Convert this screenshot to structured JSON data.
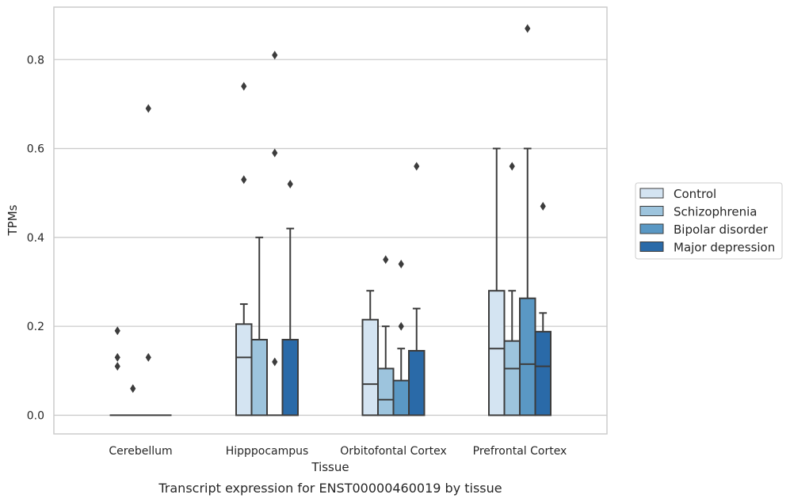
{
  "chart_data": {
    "type": "box",
    "xlabel": "Tissue",
    "ylabel": "TPMs",
    "caption": "Transcript expression for ENST00000460019 by tissue",
    "ylim": [
      -0.042,
      0.918
    ],
    "yticks": [
      0.0,
      0.2,
      0.4,
      0.6,
      0.8
    ],
    "ytick_labels": [
      "0.0",
      "0.2",
      "0.4",
      "0.6",
      "0.8"
    ],
    "grid": true,
    "legend_position": "right",
    "categories": [
      "Cerebellum",
      "Hipppocampus",
      "Orbitofontal Cortex",
      "Prefrontal Cortex"
    ],
    "series": [
      {
        "name": "Control",
        "color": "#d4e4f2",
        "boxes": [
          {
            "q1": 0.0,
            "median": 0.0,
            "q3": 0.0,
            "whisker_low": 0.0,
            "whisker_high": 0.0,
            "outliers": [
              0.19,
              0.13,
              0.11
            ]
          },
          {
            "q1": 0.0,
            "median": 0.13,
            "q3": 0.205,
            "whisker_low": 0.0,
            "whisker_high": 0.25,
            "outliers": [
              0.74,
              0.53
            ]
          },
          {
            "q1": 0.0,
            "median": 0.07,
            "q3": 0.215,
            "whisker_low": 0.0,
            "whisker_high": 0.28,
            "outliers": []
          },
          {
            "q1": 0.0,
            "median": 0.15,
            "q3": 0.28,
            "whisker_low": 0.0,
            "whisker_high": 0.6,
            "outliers": []
          }
        ]
      },
      {
        "name": "Schizophrenia",
        "color": "#9dc4dd",
        "boxes": [
          {
            "q1": 0.0,
            "median": 0.0,
            "q3": 0.0,
            "whisker_low": 0.0,
            "whisker_high": 0.0,
            "outliers": [
              0.06
            ]
          },
          {
            "q1": 0.0,
            "median": 0.17,
            "q3": 0.17,
            "whisker_low": 0.0,
            "whisker_high": 0.4,
            "outliers": []
          },
          {
            "q1": 0.0,
            "median": 0.035,
            "q3": 0.105,
            "whisker_low": 0.0,
            "whisker_high": 0.2,
            "outliers": [
              0.35
            ]
          },
          {
            "q1": 0.0,
            "median": 0.105,
            "q3": 0.167,
            "whisker_low": 0.0,
            "whisker_high": 0.28,
            "outliers": [
              0.56
            ]
          }
        ]
      },
      {
        "name": "Bipolar disorder",
        "color": "#5a98c4",
        "boxes": [
          {
            "q1": 0.0,
            "median": 0.0,
            "q3": 0.0,
            "whisker_low": 0.0,
            "whisker_high": 0.0,
            "outliers": [
              0.69,
              0.13
            ]
          },
          {
            "q1": 0.0,
            "median": 0.0,
            "q3": 0.0,
            "whisker_low": 0.0,
            "whisker_high": 0.0,
            "outliers": [
              0.81,
              0.59,
              0.12
            ]
          },
          {
            "q1": 0.0,
            "median": 0.0,
            "q3": 0.078,
            "whisker_low": 0.0,
            "whisker_high": 0.15,
            "outliers": [
              0.34,
              0.2
            ]
          },
          {
            "q1": 0.0,
            "median": 0.115,
            "q3": 0.263,
            "whisker_low": 0.0,
            "whisker_high": 0.6,
            "outliers": [
              0.87
            ]
          }
        ]
      },
      {
        "name": "Major depression",
        "color": "#2a6aa8",
        "boxes": [
          {
            "q1": 0.0,
            "median": 0.0,
            "q3": 0.0,
            "whisker_low": 0.0,
            "whisker_high": 0.0,
            "outliers": []
          },
          {
            "q1": 0.0,
            "median": 0.17,
            "q3": 0.17,
            "whisker_low": 0.0,
            "whisker_high": 0.42,
            "outliers": [
              0.52
            ]
          },
          {
            "q1": 0.0,
            "median": 0.145,
            "q3": 0.145,
            "whisker_low": 0.0,
            "whisker_high": 0.24,
            "outliers": [
              0.56
            ]
          },
          {
            "q1": 0.0,
            "median": 0.11,
            "q3": 0.188,
            "whisker_low": 0.0,
            "whisker_high": 0.23,
            "outliers": [
              0.47
            ]
          }
        ]
      }
    ]
  },
  "colors": {
    "edge": "#3c3c3c",
    "grid": "#cccccc",
    "frame": "#cccccc",
    "text": "#262626"
  }
}
